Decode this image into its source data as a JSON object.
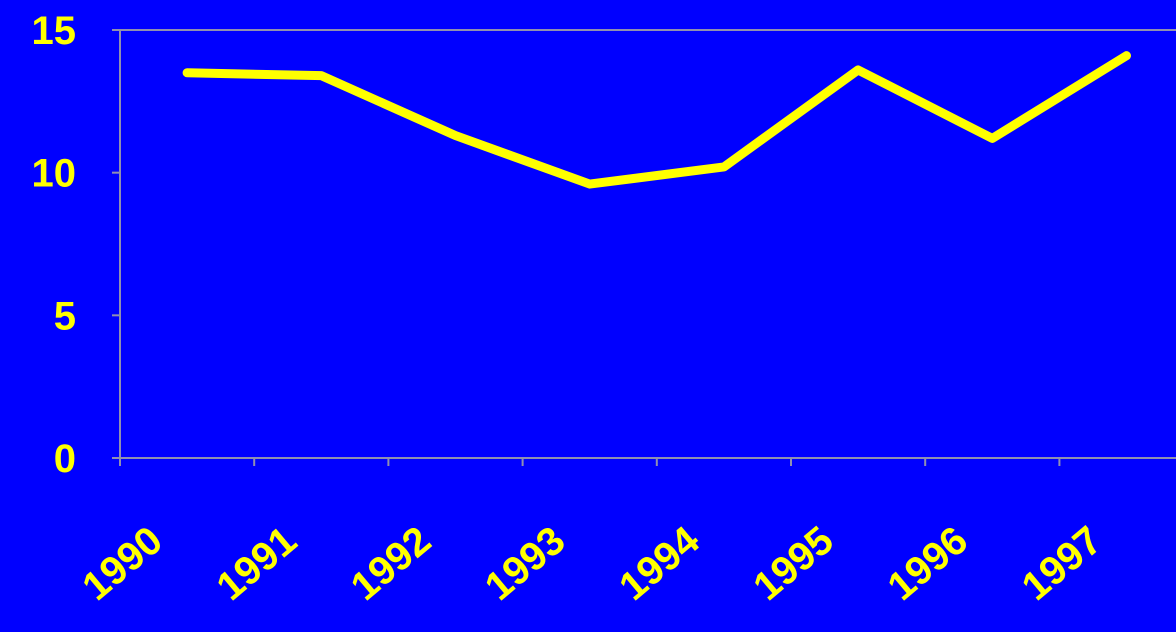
{
  "chart_data": {
    "type": "line",
    "categories": [
      "1990",
      "1991",
      "1992",
      "1993",
      "1994",
      "1995",
      "1996",
      "1997"
    ],
    "values": [
      13.5,
      13.4,
      11.3,
      9.6,
      10.2,
      13.6,
      11.2,
      14.1
    ],
    "color": "#ffff00",
    "ylim": [
      0,
      15
    ],
    "yticks": [
      0,
      5,
      10,
      15
    ],
    "grid": false
  }
}
